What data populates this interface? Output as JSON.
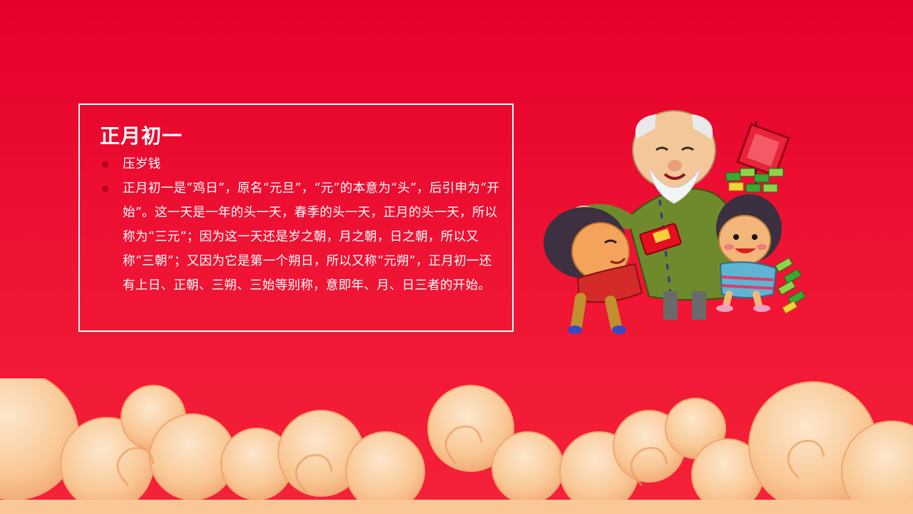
{
  "slide": {
    "title": "正月初一",
    "bullets": [
      {
        "text": "压岁钱"
      },
      {
        "text": "正月初一是“鸡日”，原名“元旦”，“元”的本意为“头”，后引申为“开始”。这一天是一年的头一天，春季的头一天，正月的头一天，所以称为“三元”；因为这一天还是岁之朝，月之朝，日之朝，所以又称“三朝”；又因为它是第一个朔日，所以又称“元朔”，正月初一还有上日、正朝、三朔、三始等别称，意即年、月、日三者的开始。"
      }
    ]
  },
  "colors": {
    "background": "#e8001f",
    "text": "#ffffff",
    "bullet_dot": "#b3001b",
    "cloud_light": "#fde3c4",
    "cloud_mid": "#f8c595",
    "cloud_dark": "#f0a872"
  },
  "illustration": {
    "icon": "family-new-year-red-envelope-illustration"
  },
  "decoration": {
    "icon": "auspicious-clouds-decoration"
  }
}
